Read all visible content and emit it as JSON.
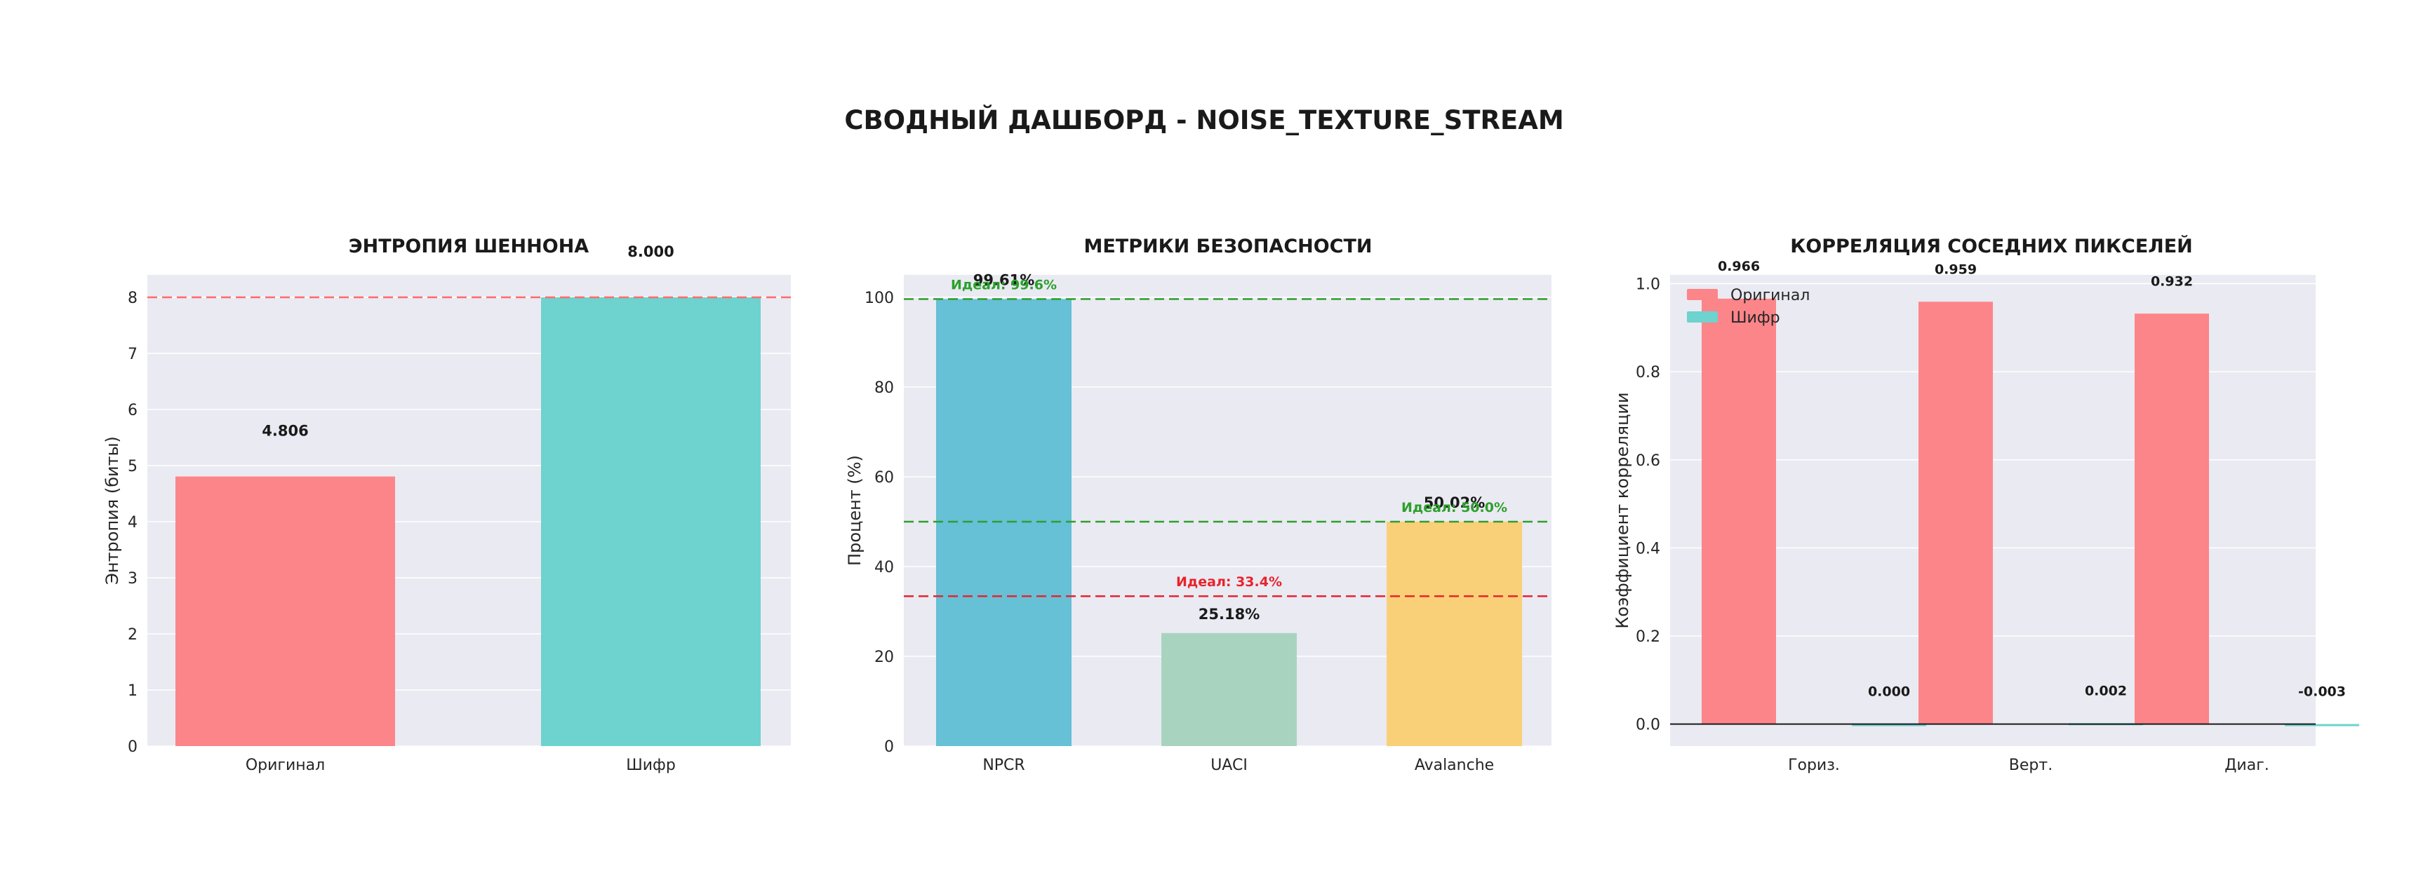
{
  "title": "СВОДНЫЙ ДАШБОРД - NOISE_TEXTURE_STREAM",
  "colors": {
    "original": "#fc8589",
    "cipher": "#6ed2ce",
    "npcr": "#66c0d6",
    "uaci": "#a8d4bf",
    "avalanche": "#f9d077",
    "green_ref": "#2ca02c",
    "red_ref": "#e8242d",
    "entropy_ref": "#ff6b6b",
    "panel_bg": "#eaeaf2"
  },
  "chart_data": [
    {
      "type": "bar",
      "title": "ЭНТРОПИЯ ШЕННОНА",
      "ylabel": "Энтропия (биты)",
      "xlabel": "",
      "categories": [
        "Оригинал",
        "Шифр"
      ],
      "values": [
        4.806,
        8.0
      ],
      "value_labels": [
        "4.806",
        "8.000"
      ],
      "ylim": [
        0,
        8.4
      ],
      "yticks": [
        "0",
        "1",
        "2",
        "3",
        "4",
        "5",
        "6",
        "7",
        "8"
      ],
      "reference_lines": [
        {
          "value": 8.0,
          "style": "dashed",
          "color": "red"
        }
      ],
      "grid": true
    },
    {
      "type": "bar",
      "title": "МЕТРИКИ БЕЗОПАСНОСТИ",
      "ylabel": "Процент (%)",
      "xlabel": "",
      "categories": [
        "NPCR",
        "UACI",
        "Avalanche"
      ],
      "values": [
        99.61,
        25.18,
        50.02
      ],
      "value_labels": [
        "99.61%",
        "25.18%",
        "50.02%"
      ],
      "ylim": [
        0,
        105
      ],
      "yticks": [
        "0",
        "20",
        "40",
        "60",
        "80",
        "100"
      ],
      "reference_lines": [
        {
          "value": 99.6,
          "label": "Идеал: 99.6%",
          "color": "green"
        },
        {
          "value": 33.4,
          "label": "Идеал: 33.4%",
          "color": "red"
        },
        {
          "value": 50.0,
          "label": "Идеал: 50.0%",
          "color": "green"
        }
      ],
      "grid": true
    },
    {
      "type": "bar",
      "title": "КОРРЕЛЯЦИЯ СОСЕДНИХ ПИКСЕЛЕЙ",
      "ylabel": "Коэффициент корреляции",
      "xlabel": "",
      "categories": [
        "Гориз.",
        "Верт.",
        "Диаг."
      ],
      "series": [
        {
          "name": "Оригинал",
          "values": [
            0.966,
            0.959,
            0.932
          ],
          "labels": [
            "0.966",
            "0.959",
            "0.932"
          ]
        },
        {
          "name": "Шифр",
          "values": [
            0.0,
            0.002,
            -0.003
          ],
          "labels": [
            "0.000",
            "0.002",
            "-0.003"
          ]
        }
      ],
      "ylim": [
        -0.05,
        1.02
      ],
      "yticks": [
        "0.0",
        "0.2",
        "0.4",
        "0.6",
        "0.8",
        "1.0"
      ],
      "legend": "top-left",
      "grid": true
    }
  ]
}
